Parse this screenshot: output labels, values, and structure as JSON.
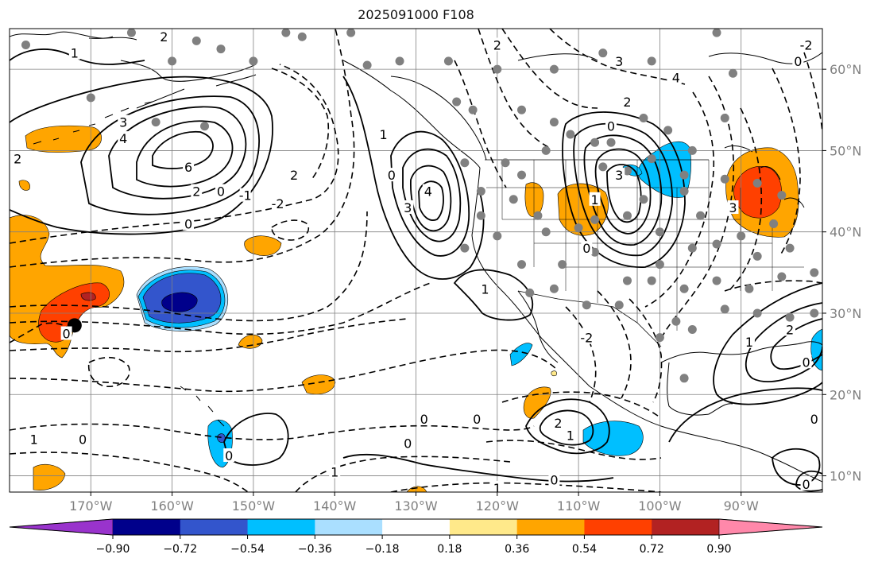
{
  "title": "2025091000 F108",
  "map": {
    "lon_range": [
      -180,
      -80
    ],
    "lat_range": [
      8,
      65
    ],
    "lon_ticks": [
      {
        "value": -170,
        "label": "170°W"
      },
      {
        "value": -160,
        "label": "160°W"
      },
      {
        "value": -150,
        "label": "150°W"
      },
      {
        "value": -140,
        "label": "140°W"
      },
      {
        "value": -130,
        "label": "130°W"
      },
      {
        "value": -120,
        "label": "120°W"
      },
      {
        "value": -110,
        "label": "110°W"
      },
      {
        "value": -100,
        "label": "100°W"
      },
      {
        "value": -90,
        "label": "90°W"
      }
    ],
    "lat_ticks": [
      {
        "value": 60,
        "label": "60°N"
      },
      {
        "value": 50,
        "label": "50°N"
      },
      {
        "value": 40,
        "label": "40°N"
      },
      {
        "value": 30,
        "label": "30°N"
      },
      {
        "value": 20,
        "label": "20°N"
      },
      {
        "value": 10,
        "label": "10°N"
      }
    ],
    "grid": true
  },
  "colorbar": {
    "colors": [
      "#9933cc",
      "#00008b",
      "#3355cc",
      "#00bfff",
      "#aadfff",
      "#ffffff",
      "#ffe98a",
      "#ffa500",
      "#ff4000",
      "#b22222",
      "#ff88aa"
    ],
    "tick_labels": [
      "−0.90",
      "−0.72",
      "−0.54",
      "−0.36",
      "−0.18",
      "0.18",
      "0.36",
      "0.54",
      "0.72",
      "0.90"
    ],
    "extend": "both"
  },
  "contour_labels": [
    {
      "text": "1",
      "lon": -172,
      "lat": 62
    },
    {
      "text": "2",
      "lon": -161,
      "lat": 64
    },
    {
      "text": "2",
      "lon": -179,
      "lat": 49
    },
    {
      "text": "3",
      "lon": -166,
      "lat": 53.5
    },
    {
      "text": "4",
      "lon": -166,
      "lat": 51.5
    },
    {
      "text": "6",
      "lon": -158,
      "lat": 48
    },
    {
      "text": "2",
      "lon": -157,
      "lat": 45
    },
    {
      "text": "0",
      "lon": -154,
      "lat": 45
    },
    {
      "text": "-1",
      "lon": -151,
      "lat": 44.5
    },
    {
      "text": "2",
      "lon": -145,
      "lat": 47
    },
    {
      "text": "-2",
      "lon": -147,
      "lat": 43.5
    },
    {
      "text": "0",
      "lon": -158,
      "lat": 41
    },
    {
      "text": "1",
      "lon": -134,
      "lat": 52
    },
    {
      "text": "0",
      "lon": -133,
      "lat": 47
    },
    {
      "text": "3",
      "lon": -131,
      "lat": 43
    },
    {
      "text": "4",
      "lon": -128.5,
      "lat": 45
    },
    {
      "text": "2",
      "lon": -120,
      "lat": 63
    },
    {
      "text": "3",
      "lon": -105,
      "lat": 61
    },
    {
      "text": "4",
      "lon": -98,
      "lat": 59
    },
    {
      "text": "2",
      "lon": -104,
      "lat": 56
    },
    {
      "text": "0",
      "lon": -106,
      "lat": 53
    },
    {
      "text": "3",
      "lon": -105,
      "lat": 47
    },
    {
      "text": "1",
      "lon": -108,
      "lat": 44
    },
    {
      "text": "0",
      "lon": -109,
      "lat": 38
    },
    {
      "text": "1",
      "lon": -121.5,
      "lat": 33
    },
    {
      "text": "-2",
      "lon": -109,
      "lat": 27
    },
    {
      "text": "3",
      "lon": -91,
      "lat": 43
    },
    {
      "text": "0",
      "lon": -83,
      "lat": 61
    },
    {
      "text": "-2",
      "lon": -82,
      "lat": 63
    },
    {
      "text": "2",
      "lon": -84,
      "lat": 28
    },
    {
      "text": "1",
      "lon": -89,
      "lat": 26.5
    },
    {
      "text": "0",
      "lon": -82,
      "lat": 24
    },
    {
      "text": "0",
      "lon": -81,
      "lat": 17
    },
    {
      "text": "0",
      "lon": -82,
      "lat": 9
    },
    {
      "text": "0",
      "lon": -173,
      "lat": 27.5
    },
    {
      "text": "1",
      "lon": -177,
      "lat": 14.5
    },
    {
      "text": "0",
      "lon": -171,
      "lat": 14.5
    },
    {
      "text": "0",
      "lon": -153,
      "lat": 12.5
    },
    {
      "text": "1",
      "lon": -140,
      "lat": 10.5
    },
    {
      "text": "0",
      "lon": -131,
      "lat": 14
    },
    {
      "text": "0",
      "lon": -129,
      "lat": 17
    },
    {
      "text": "0",
      "lon": -122.5,
      "lat": 17
    },
    {
      "text": "2",
      "lon": -112.5,
      "lat": 16.5
    },
    {
      "text": "1",
      "lon": -111,
      "lat": 15
    },
    {
      "text": "0",
      "lon": -113,
      "lat": 9.5
    },
    {
      "text": "1",
      "lon": -120,
      "lat": 8.5
    }
  ],
  "stations": [
    [
      -165,
      64.5
    ],
    [
      -157,
      63.5
    ],
    [
      -146,
      64.5
    ],
    [
      -144,
      64
    ],
    [
      -138,
      64.5
    ],
    [
      -132,
      61
    ],
    [
      -178,
      63
    ],
    [
      -160,
      61
    ],
    [
      -154,
      62.5
    ],
    [
      -150,
      61
    ],
    [
      -136,
      60.5
    ],
    [
      -126,
      61
    ],
    [
      -120,
      60
    ],
    [
      -113,
      60
    ],
    [
      -107,
      62
    ],
    [
      -101,
      61
    ],
    [
      -93,
      64.5
    ],
    [
      -91,
      59.5
    ],
    [
      -170,
      56.5
    ],
    [
      -162,
      53.5
    ],
    [
      -156,
      53
    ],
    [
      -125,
      56
    ],
    [
      -123,
      55
    ],
    [
      -117,
      55
    ],
    [
      -113,
      53.5
    ],
    [
      -111,
      52
    ],
    [
      -108,
      51
    ],
    [
      -102,
      54
    ],
    [
      -92,
      54
    ],
    [
      -99,
      52.5
    ],
    [
      -106,
      51
    ],
    [
      -96,
      50
    ],
    [
      -119,
      48.5
    ],
    [
      -124,
      48.5
    ],
    [
      -117,
      47
    ],
    [
      -114,
      50
    ],
    [
      -107,
      48
    ],
    [
      -104,
      47.5
    ],
    [
      -101,
      49
    ],
    [
      -97,
      47
    ],
    [
      -122,
      45
    ],
    [
      -118,
      44
    ],
    [
      -115,
      42
    ],
    [
      -108,
      41.5
    ],
    [
      -102,
      44
    ],
    [
      -97,
      45
    ],
    [
      -92,
      46.5
    ],
    [
      -88,
      46
    ],
    [
      -85,
      44.5
    ],
    [
      -122,
      42
    ],
    [
      -120,
      39.5
    ],
    [
      -114,
      40
    ],
    [
      -110,
      40.5
    ],
    [
      -104,
      42
    ],
    [
      -100,
      40
    ],
    [
      -95,
      42
    ],
    [
      -90,
      39.5
    ],
    [
      -86,
      41
    ],
    [
      -117,
      36
    ],
    [
      -112,
      36
    ],
    [
      -108,
      37.5
    ],
    [
      -104,
      34
    ],
    [
      -100,
      36
    ],
    [
      -96,
      38
    ],
    [
      -93,
      38.5
    ],
    [
      -88,
      37
    ],
    [
      -84,
      38
    ],
    [
      -113,
      33
    ],
    [
      -109,
      31
    ],
    [
      -105,
      31
    ],
    [
      -101,
      34
    ],
    [
      -97,
      33
    ],
    [
      -93,
      34
    ],
    [
      -89,
      33
    ],
    [
      -85,
      34.5
    ],
    [
      -81,
      35
    ],
    [
      -98,
      29
    ],
    [
      -96,
      28
    ],
    [
      -92,
      30.5
    ],
    [
      -88,
      30
    ],
    [
      -84,
      29.5
    ],
    [
      -81,
      30
    ],
    [
      -116,
      32.5
    ],
    [
      -100,
      27
    ],
    [
      -97,
      22
    ],
    [
      -124,
      38
    ]
  ],
  "big_dot": {
    "lon": -172,
    "lat": 28.5
  }
}
